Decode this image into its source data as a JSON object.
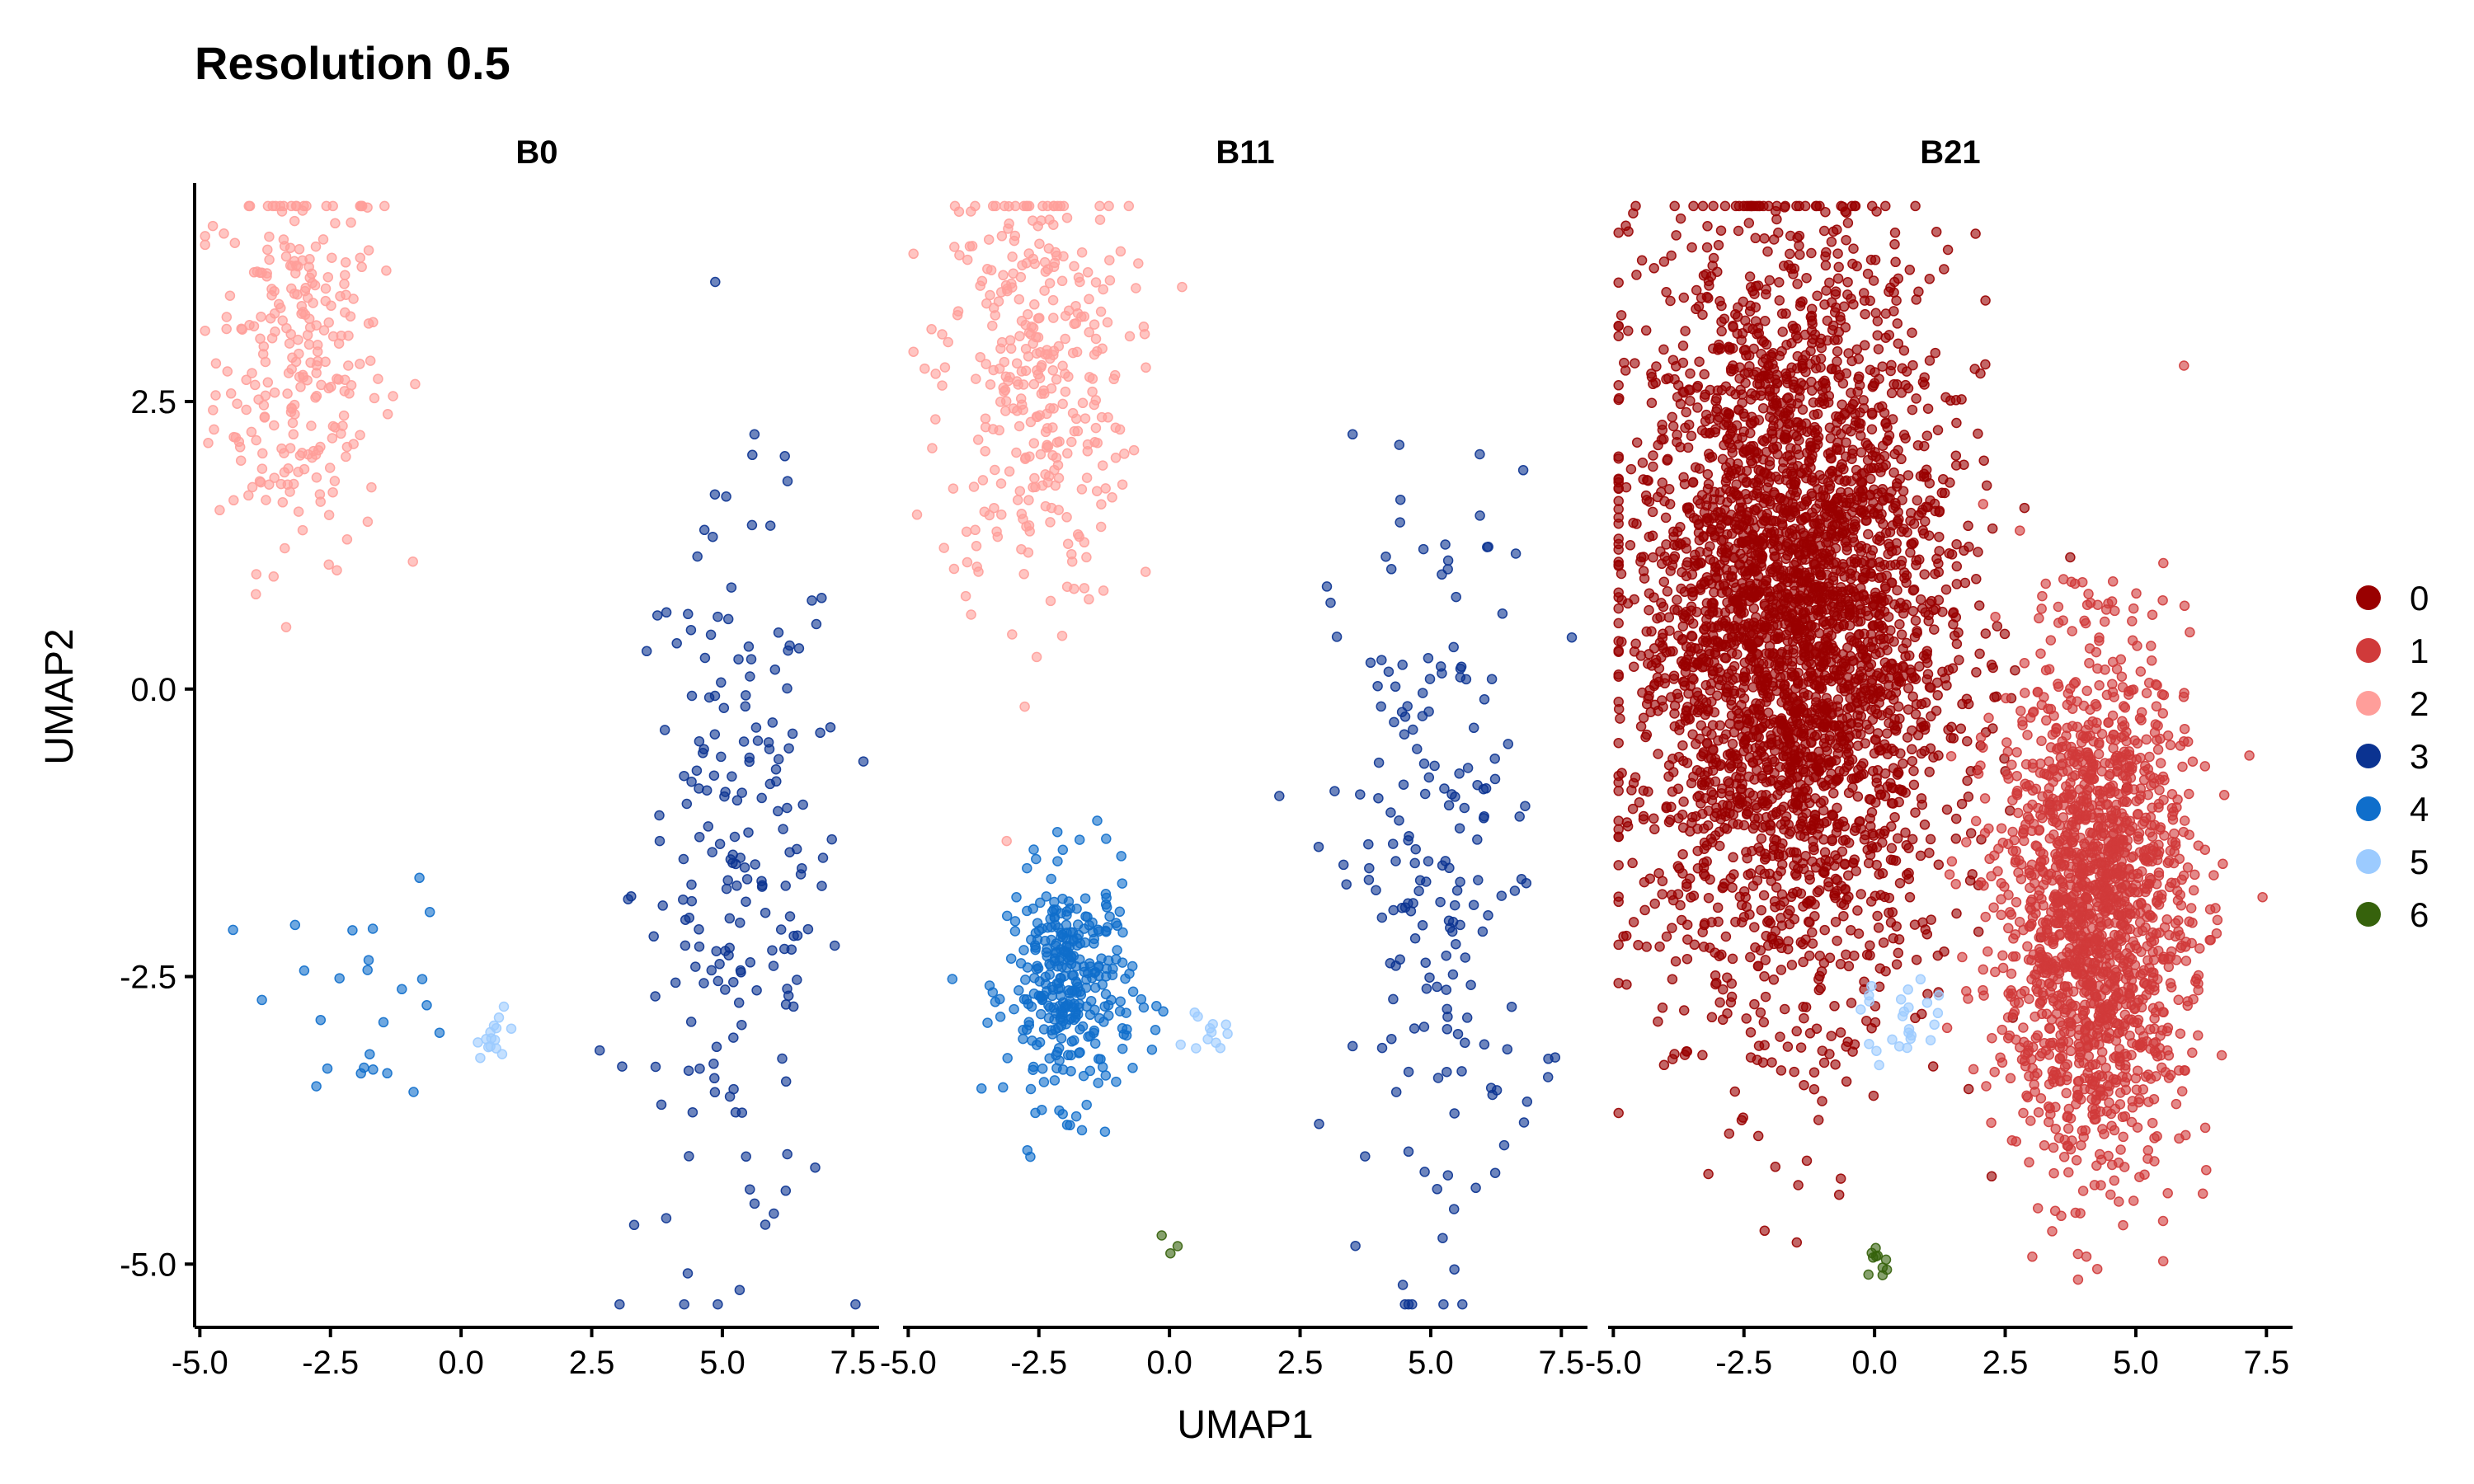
{
  "chart_data": {
    "type": "scatter",
    "title": "Resolution 0.5",
    "xlabel": "UMAP1",
    "ylabel": "UMAP2",
    "xlim": [
      -5.1,
      8.0
    ],
    "ylim": [
      -5.55,
      4.4
    ],
    "x_ticks": [
      -5.0,
      -2.5,
      0.0,
      2.5,
      5.0,
      7.5
    ],
    "x_tick_labels": [
      "-5.0",
      "-2.5",
      "0.0",
      "2.5",
      "5.0",
      "7.5"
    ],
    "y_ticks": [
      -5.0,
      -2.5,
      0.0,
      2.5
    ],
    "y_tick_labels": [
      "-5.0",
      "-2.5",
      "0.0",
      "2.5"
    ],
    "grid": false,
    "legend_position": "right",
    "legend": [
      {
        "label": "0",
        "color": "#990000"
      },
      {
        "label": "1",
        "color": "#d03a3a"
      },
      {
        "label": "2",
        "color": "#ff9e9a"
      },
      {
        "label": "3",
        "color": "#0b3391"
      },
      {
        "label": "4",
        "color": "#0f6ecb"
      },
      {
        "label": "5",
        "color": "#9ccbff"
      },
      {
        "label": "6",
        "color": "#36620c"
      }
    ],
    "panels": [
      {
        "name": "B0",
        "series": [
          {
            "cluster": "2",
            "approx_n": 260,
            "center": [
              -3.1,
              2.9
            ],
            "spread": [
              0.8,
              0.9
            ]
          },
          {
            "cluster": "3",
            "approx_n": 200,
            "center": [
              5.3,
              -1.7
            ],
            "spread": [
              1.0,
              1.6
            ]
          },
          {
            "cluster": "4",
            "approx_n": 25,
            "center": [
              -1.8,
              -2.6
            ],
            "spread": [
              0.9,
              0.5
            ]
          },
          {
            "cluster": "5",
            "approx_n": 15,
            "center": [
              0.7,
              -3.0
            ],
            "spread": [
              0.2,
              0.1
            ]
          }
        ]
      },
      {
        "name": "B11",
        "series": [
          {
            "cluster": "2",
            "approx_n": 340,
            "center": [
              -2.6,
              2.7
            ],
            "spread": [
              0.9,
              1.0
            ]
          },
          {
            "cluster": "3",
            "approx_n": 190,
            "center": [
              5.1,
              -1.6
            ],
            "spread": [
              1.0,
              1.7
            ]
          },
          {
            "cluster": "4",
            "approx_n": 330,
            "center": [
              -1.9,
              -2.6
            ],
            "spread": [
              0.6,
              0.5
            ]
          },
          {
            "cluster": "5",
            "approx_n": 12,
            "center": [
              0.7,
              -3.0
            ],
            "spread": [
              0.2,
              0.1
            ]
          },
          {
            "cluster": "6",
            "approx_n": 3,
            "center": [
              0.0,
              -5.0
            ],
            "spread": [
              0.1,
              0.1
            ]
          }
        ]
      },
      {
        "name": "B21",
        "series": [
          {
            "cluster": "0",
            "approx_n": 3500,
            "center": [
              -1.6,
              0.6
            ],
            "spread": [
              1.5,
              1.6
            ]
          },
          {
            "cluster": "1",
            "approx_n": 1700,
            "center": [
              4.2,
              -1.9
            ],
            "spread": [
              0.9,
              1.1
            ]
          },
          {
            "cluster": "5",
            "approx_n": 25,
            "center": [
              0.6,
              -2.9
            ],
            "spread": [
              0.4,
              0.2
            ]
          },
          {
            "cluster": "6",
            "approx_n": 10,
            "center": [
              0.1,
              -5.0
            ],
            "spread": [
              0.1,
              0.1
            ]
          }
        ]
      }
    ]
  }
}
